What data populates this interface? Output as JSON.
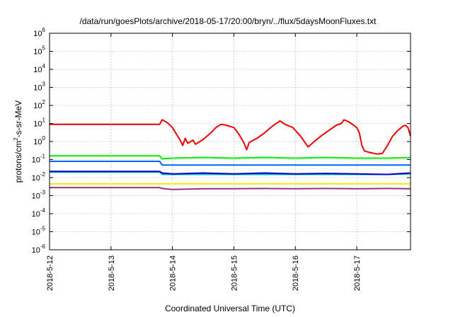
{
  "chart_data": {
    "type": "line",
    "title": "/data/run/goesPlots/archive/2018-05-17/20:00/bryn/../flux/5daysMoonFluxes.txt",
    "xlabel": "Coordinated Universal Time (UTC)",
    "ylabel": {
      "base": "protons/cm",
      "sup": "2",
      "rest": "-s-sr-MeV"
    },
    "y_scale": "log",
    "ylim": [
      1e-06,
      1000000.0
    ],
    "xlim": [
      "2018-05-12 00:00",
      "2018-05-17 21:00"
    ],
    "grid": true,
    "legend": "none",
    "x_ticks": [
      "2018-5-12",
      "2018-5-13",
      "2018-5-14",
      "2018-5-15",
      "2018-5-16",
      "2018-5-17"
    ],
    "y_ticks": [
      {
        "base": "10",
        "exp": "6"
      },
      {
        "base": "10",
        "exp": "5"
      },
      {
        "base": "10",
        "exp": "4"
      },
      {
        "base": "10",
        "exp": "3"
      },
      {
        "base": "10",
        "exp": "2"
      },
      {
        "base": "10",
        "exp": "1"
      },
      {
        "base": "10",
        "exp": "0"
      },
      {
        "base": "10",
        "exp": "-1"
      },
      {
        "base": "10",
        "exp": "-2"
      },
      {
        "base": "10",
        "exp": "-3"
      },
      {
        "base": "10",
        "exp": "-4"
      },
      {
        "base": "10",
        "exp": "-5"
      },
      {
        "base": "10",
        "exp": "-6"
      }
    ],
    "series": [
      {
        "color": "#ee0000",
        "points": [
          [
            "2018-05-12 00:00",
            9
          ],
          [
            "2018-05-13 19:00",
            9
          ],
          [
            "2018-05-13 20:00",
            16
          ],
          [
            "2018-05-13 22:00",
            11
          ],
          [
            "2018-05-14 00:00",
            6
          ],
          [
            "2018-05-14 02:00",
            2
          ],
          [
            "2018-05-14 03:00",
            1.2
          ],
          [
            "2018-05-14 04:00",
            0.6
          ],
          [
            "2018-05-14 05:00",
            1.5
          ],
          [
            "2018-05-14 06:00",
            0.8
          ],
          [
            "2018-05-14 08:00",
            1.2
          ],
          [
            "2018-05-14 09:00",
            0.7
          ],
          [
            "2018-05-14 12:00",
            1.3
          ],
          [
            "2018-05-14 15:00",
            3
          ],
          [
            "2018-05-14 17:00",
            6
          ],
          [
            "2018-05-14 19:00",
            9
          ],
          [
            "2018-05-14 21:00",
            8
          ],
          [
            "2018-05-15 00:00",
            6
          ],
          [
            "2018-05-15 02:00",
            2.5
          ],
          [
            "2018-05-15 04:00",
            0.8
          ],
          [
            "2018-05-15 05:00",
            0.35
          ],
          [
            "2018-05-15 06:00",
            0.9
          ],
          [
            "2018-05-15 09:00",
            1.5
          ],
          [
            "2018-05-15 12:00",
            3
          ],
          [
            "2018-05-15 15:00",
            7
          ],
          [
            "2018-05-15 18:00",
            14
          ],
          [
            "2018-05-15 20:00",
            9
          ],
          [
            "2018-05-15 23:00",
            6
          ],
          [
            "2018-05-16 02:00",
            2
          ],
          [
            "2018-05-16 04:00",
            0.8
          ],
          [
            "2018-05-16 05:00",
            0.5
          ],
          [
            "2018-05-16 07:00",
            0.9
          ],
          [
            "2018-05-16 10:00",
            2
          ],
          [
            "2018-05-16 13:00",
            4
          ],
          [
            "2018-05-16 16:00",
            8
          ],
          [
            "2018-05-16 18:00",
            10
          ],
          [
            "2018-05-16 19:00",
            16
          ],
          [
            "2018-05-16 21:00",
            12
          ],
          [
            "2018-05-17 00:00",
            6
          ],
          [
            "2018-05-17 01:00",
            3
          ],
          [
            "2018-05-17 02:00",
            0.6
          ],
          [
            "2018-05-17 03:00",
            0.3
          ],
          [
            "2018-05-17 05:00",
            0.25
          ],
          [
            "2018-05-17 08:00",
            0.2
          ],
          [
            "2018-05-17 10:00",
            0.22
          ],
          [
            "2018-05-17 12:00",
            0.6
          ],
          [
            "2018-05-17 14:00",
            2
          ],
          [
            "2018-05-17 16:00",
            4
          ],
          [
            "2018-05-17 18:00",
            7
          ],
          [
            "2018-05-17 19:00",
            8
          ],
          [
            "2018-05-17 20:00",
            6
          ],
          [
            "2018-05-17 21:00",
            2
          ]
        ]
      },
      {
        "color": "#00ee00",
        "points": [
          [
            "2018-05-12 00:00",
            0.16
          ],
          [
            "2018-05-13 19:00",
            0.16
          ],
          [
            "2018-05-13 20:00",
            0.11
          ],
          [
            "2018-05-14 00:00",
            0.12
          ],
          [
            "2018-05-14 12:00",
            0.13
          ],
          [
            "2018-05-15 00:00",
            0.12
          ],
          [
            "2018-05-15 12:00",
            0.13
          ],
          [
            "2018-05-16 00:00",
            0.12
          ],
          [
            "2018-05-16 12:00",
            0.13
          ],
          [
            "2018-05-17 00:00",
            0.12
          ],
          [
            "2018-05-17 12:00",
            0.12
          ],
          [
            "2018-05-17 21:00",
            0.13
          ]
        ]
      },
      {
        "color": "#0066ff",
        "points": [
          [
            "2018-05-12 00:00",
            0.08
          ],
          [
            "2018-05-13 19:00",
            0.08
          ],
          [
            "2018-05-13 20:00",
            0.05
          ],
          [
            "2018-05-14 00:00",
            0.05
          ],
          [
            "2018-05-14 12:00",
            0.05
          ],
          [
            "2018-05-15 00:00",
            0.05
          ],
          [
            "2018-05-15 12:00",
            0.05
          ],
          [
            "2018-05-16 00:00",
            0.05
          ],
          [
            "2018-05-16 12:00",
            0.05
          ],
          [
            "2018-05-17 00:00",
            0.05
          ],
          [
            "2018-05-17 12:00",
            0.05
          ],
          [
            "2018-05-17 21:00",
            0.05
          ]
        ]
      },
      {
        "color": "#00bbbb",
        "points": [
          [
            "2018-05-12 00:00",
            0.02
          ],
          [
            "2018-05-13 19:00",
            0.02
          ],
          [
            "2018-05-13 20:00",
            0.015
          ],
          [
            "2018-05-14 12:00",
            0.015
          ],
          [
            "2018-05-15 12:00",
            0.015
          ],
          [
            "2018-05-16 12:00",
            0.015
          ],
          [
            "2018-05-17 12:00",
            0.015
          ],
          [
            "2018-05-17 21:00",
            0.016
          ]
        ]
      },
      {
        "color": "#0000cc",
        "points": [
          [
            "2018-05-12 00:00",
            0.022
          ],
          [
            "2018-05-13 19:00",
            0.022
          ],
          [
            "2018-05-13 20:00",
            0.018
          ],
          [
            "2018-05-14 00:00",
            0.016
          ],
          [
            "2018-05-14 12:00",
            0.018
          ],
          [
            "2018-05-15 00:00",
            0.016
          ],
          [
            "2018-05-15 12:00",
            0.018
          ],
          [
            "2018-05-16 00:00",
            0.016
          ],
          [
            "2018-05-16 12:00",
            0.017
          ],
          [
            "2018-05-17 00:00",
            0.016
          ],
          [
            "2018-05-17 12:00",
            0.015
          ],
          [
            "2018-05-17 21:00",
            0.018
          ]
        ]
      },
      {
        "color": "#eeee00",
        "points": [
          [
            "2018-05-12 00:00",
            0.0045
          ],
          [
            "2018-05-13 19:00",
            0.0045
          ],
          [
            "2018-05-13 20:00",
            0.0045
          ],
          [
            "2018-05-14 12:00",
            0.0045
          ],
          [
            "2018-05-15 12:00",
            0.0045
          ],
          [
            "2018-05-16 12:00",
            0.0045
          ],
          [
            "2018-05-17 12:00",
            0.0045
          ],
          [
            "2018-05-17 21:00",
            0.0045
          ]
        ]
      },
      {
        "color": "#993377",
        "points": [
          [
            "2018-05-12 00:00",
            0.0028
          ],
          [
            "2018-05-13 19:00",
            0.0028
          ],
          [
            "2018-05-13 20:00",
            0.0025
          ],
          [
            "2018-05-14 00:00",
            0.0022
          ],
          [
            "2018-05-14 12:00",
            0.0024
          ],
          [
            "2018-05-15 00:00",
            0.0024
          ],
          [
            "2018-05-15 12:00",
            0.0025
          ],
          [
            "2018-05-16 00:00",
            0.0024
          ],
          [
            "2018-05-16 12:00",
            0.0025
          ],
          [
            "2018-05-17 00:00",
            0.0024
          ],
          [
            "2018-05-17 12:00",
            0.0025
          ],
          [
            "2018-05-17 21:00",
            0.0024
          ]
        ]
      }
    ]
  }
}
